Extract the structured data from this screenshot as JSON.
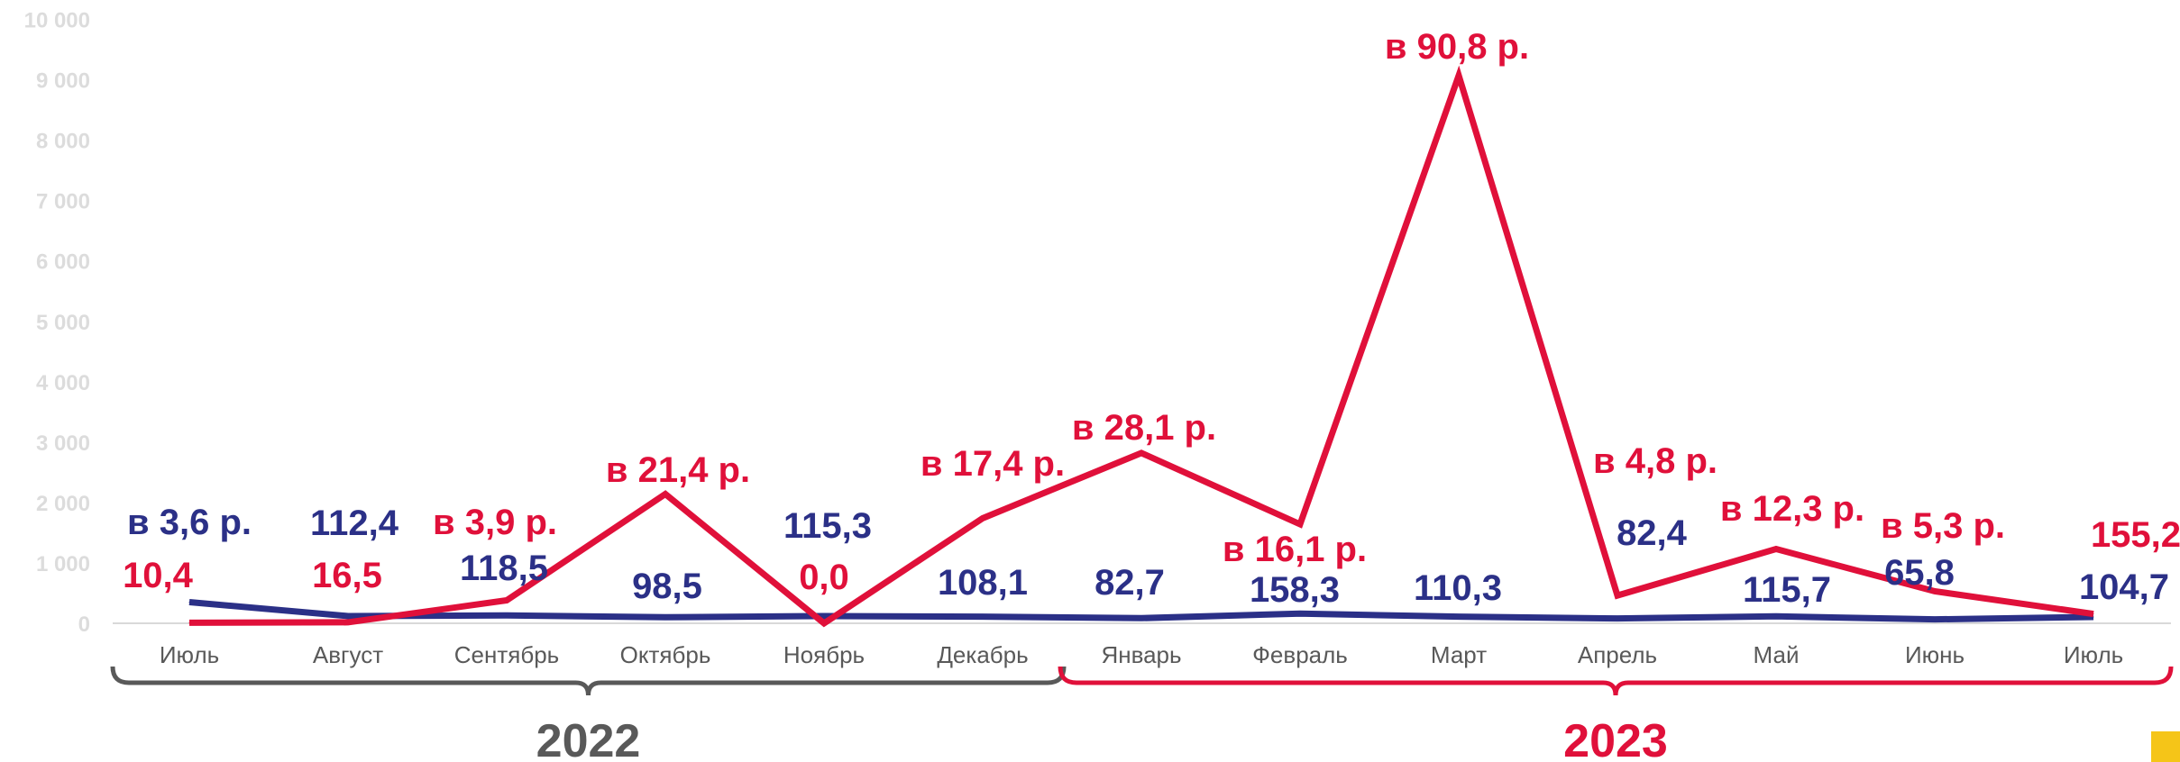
{
  "chart_data": {
    "type": "line",
    "categories": [
      "Июль",
      "Август",
      "Сентябрь",
      "Октябрь",
      "Ноябрь",
      "Декабрь",
      "Январь",
      "Февраль",
      "Март",
      "Апрель",
      "Май",
      "Июнь",
      "Июль"
    ],
    "y_ticks": [
      "0",
      "1 000",
      "2 000",
      "3 000",
      "4 000",
      "5 000",
      "6 000",
      "7 000",
      "8 000",
      "9 000",
      "10 000"
    ],
    "ylim": [
      0,
      10000
    ],
    "grid": false,
    "legend": "none",
    "series": [
      {
        "color": "#2b3087",
        "values": [
          350,
          120,
          130,
          100,
          120,
          110,
          85,
          160,
          110,
          80,
          115,
          65,
          105
        ],
        "labels": [
          "в 3,6 р.",
          "112,4",
          "118,5",
          "98,5",
          "115,3",
          "108,1",
          "82,7",
          "158,3",
          "110,3",
          "82,4",
          "115,7",
          "65,8",
          "104,7"
        ]
      },
      {
        "color": "#e0103a",
        "values": [
          10,
          16,
          380,
          2140,
          0,
          1740,
          2820,
          1640,
          9070,
          460,
          1230,
          530,
          155
        ],
        "labels": [
          "10,4",
          "16,5",
          "в 3,9 р.",
          "в 21,4 р.",
          "0,0",
          "в 17,4 р.",
          "в 28,1 р.",
          "в 16,1 р.",
          "в 90,8 р.",
          "в 4,8 р.",
          "в 12,3 р.",
          "в 5,3 р.",
          "155,2"
        ]
      }
    ],
    "groups": [
      {
        "label": "2022",
        "from": "Июль",
        "to": "Декабрь",
        "color": "#595959"
      },
      {
        "label": "2023",
        "from": "Январь",
        "to": "Июль",
        "color": "#e0103a"
      }
    ]
  },
  "decor": {
    "corner_square_color": "#f5c518"
  }
}
